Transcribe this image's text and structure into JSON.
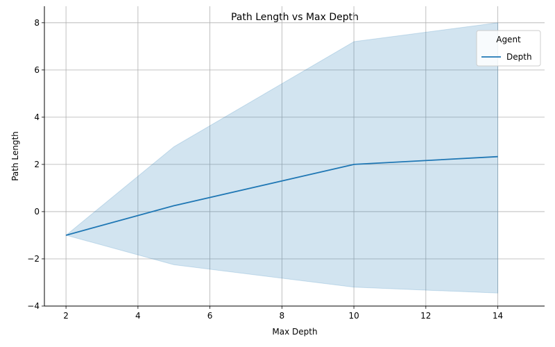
{
  "chart_data": {
    "type": "line",
    "title": "Path Length vs Max Depth",
    "xlabel": "Max Depth",
    "ylabel": "Path Length",
    "xlim": [
      1.4,
      15.3
    ],
    "ylim": [
      -4.0,
      8.7
    ],
    "xticks": [
      2,
      4,
      6,
      8,
      10,
      12,
      14
    ],
    "yticks": [
      -4,
      -2,
      0,
      2,
      4,
      6,
      8
    ],
    "grid": true,
    "legend": {
      "title": "Agent",
      "placement": "top-right"
    },
    "series": [
      {
        "name": "Depth",
        "color": "#1f77b4",
        "x": [
          2,
          5,
          10,
          14
        ],
        "y": [
          -1.0,
          0.25,
          2.0,
          2.33
        ],
        "band_upper": [
          -1.0,
          2.75,
          7.2,
          8.0
        ],
        "band_lower": [
          -1.0,
          -2.25,
          -3.2,
          -3.45
        ]
      }
    ]
  }
}
